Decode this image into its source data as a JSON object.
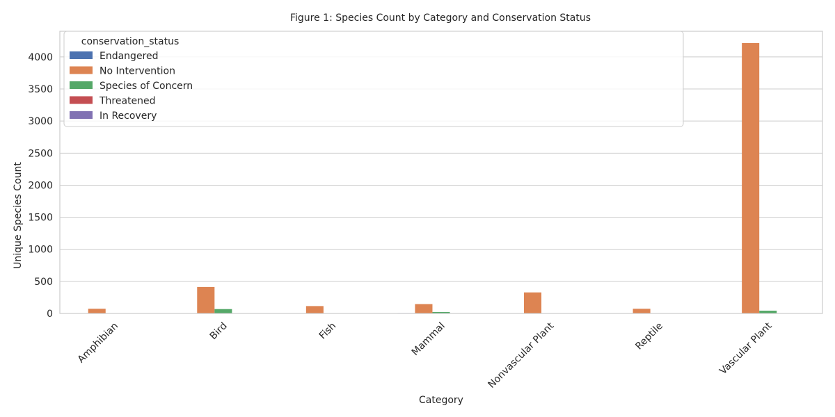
{
  "chart_data": {
    "type": "bar",
    "title": "Figure 1: Species Count by Category and Conservation Status",
    "xlabel": "Category",
    "ylabel": "Unique Species Count",
    "ylim": [
      0,
      4400
    ],
    "yticks": [
      0,
      500,
      1000,
      1500,
      2000,
      2500,
      3000,
      3500,
      4000
    ],
    "grid": "horizontal",
    "legend": {
      "title": "conservation_status",
      "placement": "top-left"
    },
    "categories": [
      "Amphibian",
      "Bird",
      "Fish",
      "Mammal",
      "Nonvascular Plant",
      "Reptile",
      "Vascular Plant"
    ],
    "series": [
      {
        "name": "Endangered",
        "color": "#4c72b0",
        "values": [
          1,
          4,
          3,
          6,
          0,
          0,
          1
        ]
      },
      {
        "name": "No Intervention",
        "color": "#dd8452",
        "values": [
          73,
          413,
          115,
          146,
          328,
          73,
          4216
        ]
      },
      {
        "name": "Species of Concern",
        "color": "#55a868",
        "values": [
          4,
          68,
          4,
          22,
          5,
          5,
          43
        ]
      },
      {
        "name": "Threatened",
        "color": "#c44e52",
        "values": [
          2,
          0,
          3,
          2,
          0,
          0,
          2
        ]
      },
      {
        "name": "In Recovery",
        "color": "#8172b3",
        "values": [
          0,
          3,
          0,
          1,
          0,
          0,
          0
        ]
      }
    ]
  }
}
